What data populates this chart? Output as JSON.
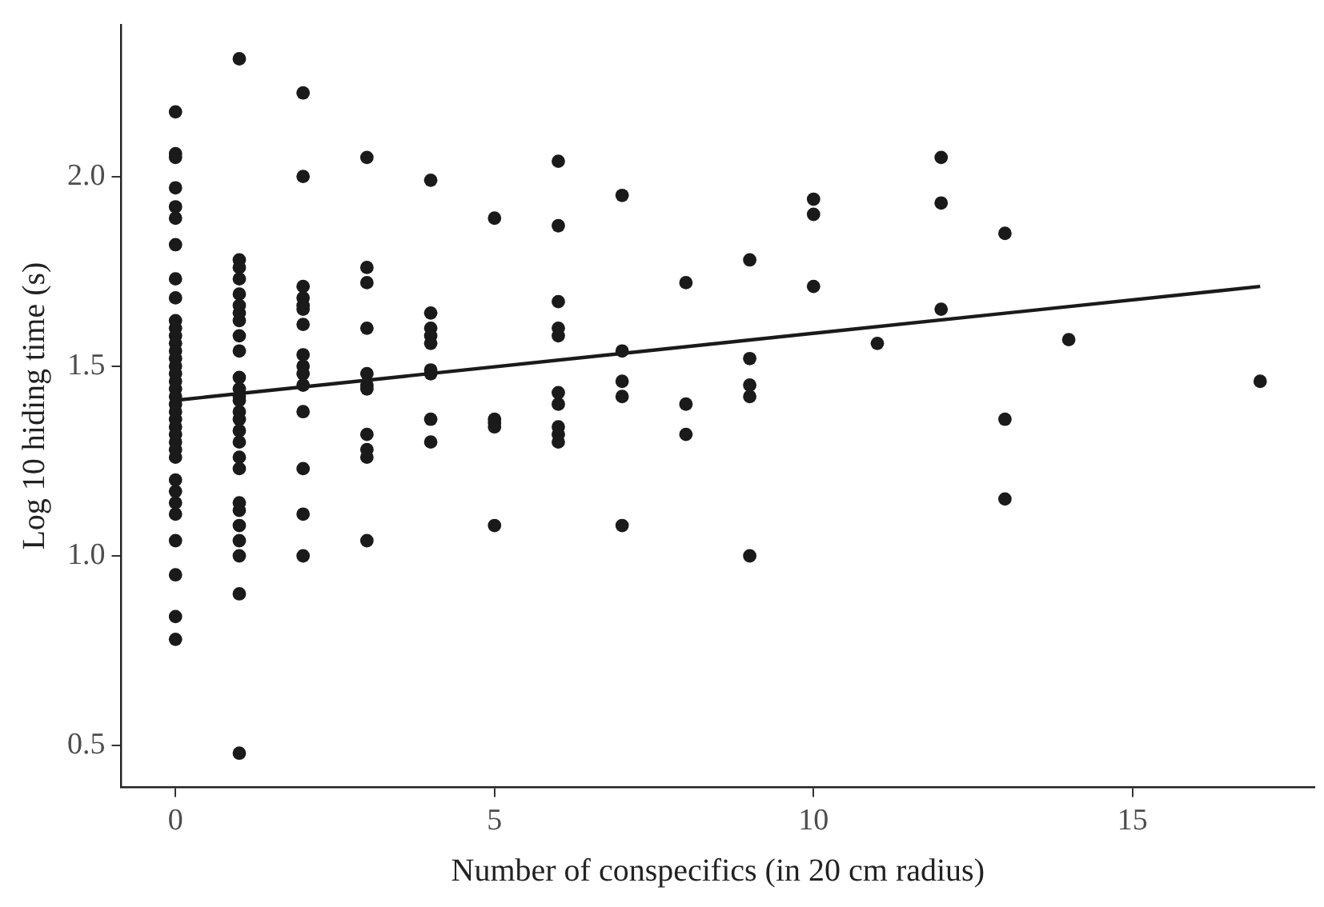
{
  "chart_data": {
    "type": "scatter",
    "xlabel": "Number of conspecifics (in 20 cm radius)",
    "ylabel": "Log 10 hiding time (s)",
    "xlim": [
      -0.85,
      17.85
    ],
    "ylim": [
      0.39,
      2.4
    ],
    "xticks": [
      0,
      5,
      10,
      15
    ],
    "yticks": [
      0.5,
      {
        "value": 1,
        "label": "1.0"
      },
      1.5,
      {
        "value": 2,
        "label": "2.0"
      }
    ],
    "grid": false,
    "legend": false,
    "marker": "circle",
    "series": [
      {
        "color": "#1a1a1a",
        "x": [
          0,
          0,
          0,
          0,
          0,
          0,
          0,
          0,
          0,
          0,
          0,
          0,
          0,
          0,
          0,
          0,
          0,
          0,
          0,
          0,
          0,
          0,
          0,
          0,
          0,
          0,
          0,
          0,
          0,
          0,
          0,
          0,
          0,
          0,
          0,
          0,
          1,
          1,
          1,
          1,
          1,
          1,
          1,
          1,
          1,
          1,
          1,
          1,
          1,
          1,
          1,
          1,
          1,
          1,
          1,
          1,
          1,
          1,
          1,
          1,
          1,
          1,
          1,
          2,
          2,
          2,
          2,
          2,
          2,
          2,
          2,
          2,
          2,
          2,
          2,
          2,
          2,
          2,
          3,
          3,
          3,
          3,
          3,
          3,
          3,
          3,
          3,
          3,
          3,
          4,
          4,
          4,
          4,
          4,
          4,
          4,
          4,
          4,
          5,
          5,
          5,
          5,
          5,
          6,
          6,
          6,
          6,
          6,
          6,
          6,
          6,
          6,
          6,
          7,
          7,
          7,
          7,
          7,
          8,
          8,
          8,
          9,
          9,
          9,
          9,
          9,
          10,
          10,
          10,
          11,
          12,
          12,
          12,
          13,
          13,
          13,
          14,
          17
        ],
        "values": [
          2.17,
          2.06,
          2.05,
          1.97,
          1.92,
          1.89,
          1.82,
          1.73,
          1.68,
          1.62,
          1.6,
          1.58,
          1.56,
          1.54,
          1.52,
          1.5,
          1.48,
          1.46,
          1.44,
          1.42,
          1.4,
          1.38,
          1.36,
          1.34,
          1.32,
          1.3,
          1.28,
          1.26,
          1.2,
          1.17,
          1.14,
          1.11,
          1.04,
          0.95,
          0.84,
          0.78,
          2.31,
          1.78,
          1.76,
          1.73,
          1.69,
          1.66,
          1.64,
          1.62,
          1.58,
          1.54,
          1.47,
          1.44,
          1.42,
          1.41,
          1.38,
          1.36,
          1.33,
          1.3,
          1.26,
          1.23,
          1.14,
          1.12,
          1.08,
          1.04,
          1.0,
          0.9,
          0.48,
          2.22,
          2.0,
          1.71,
          1.68,
          1.66,
          1.65,
          1.61,
          1.53,
          1.5,
          1.48,
          1.45,
          1.38,
          1.23,
          1.11,
          1.0,
          2.05,
          1.76,
          1.72,
          1.6,
          1.48,
          1.45,
          1.44,
          1.32,
          1.28,
          1.26,
          1.04,
          1.99,
          1.64,
          1.6,
          1.58,
          1.56,
          1.49,
          1.48,
          1.36,
          1.3,
          1.89,
          1.36,
          1.35,
          1.34,
          1.08,
          2.04,
          1.87,
          1.67,
          1.6,
          1.58,
          1.43,
          1.4,
          1.34,
          1.32,
          1.3,
          1.95,
          1.54,
          1.46,
          1.42,
          1.08,
          1.72,
          1.4,
          1.32,
          1.78,
          1.52,
          1.45,
          1.42,
          1.0,
          1.94,
          1.9,
          1.71,
          1.56,
          2.05,
          1.93,
          1.65,
          1.85,
          1.36,
          1.15,
          1.57,
          1.46
        ]
      },
      {
        "type": "line",
        "color": "#1a1a1a",
        "x": [
          0,
          17
        ],
        "values": [
          1.41,
          1.71
        ],
        "marker": "none",
        "line_style": "solid"
      }
    ]
  }
}
